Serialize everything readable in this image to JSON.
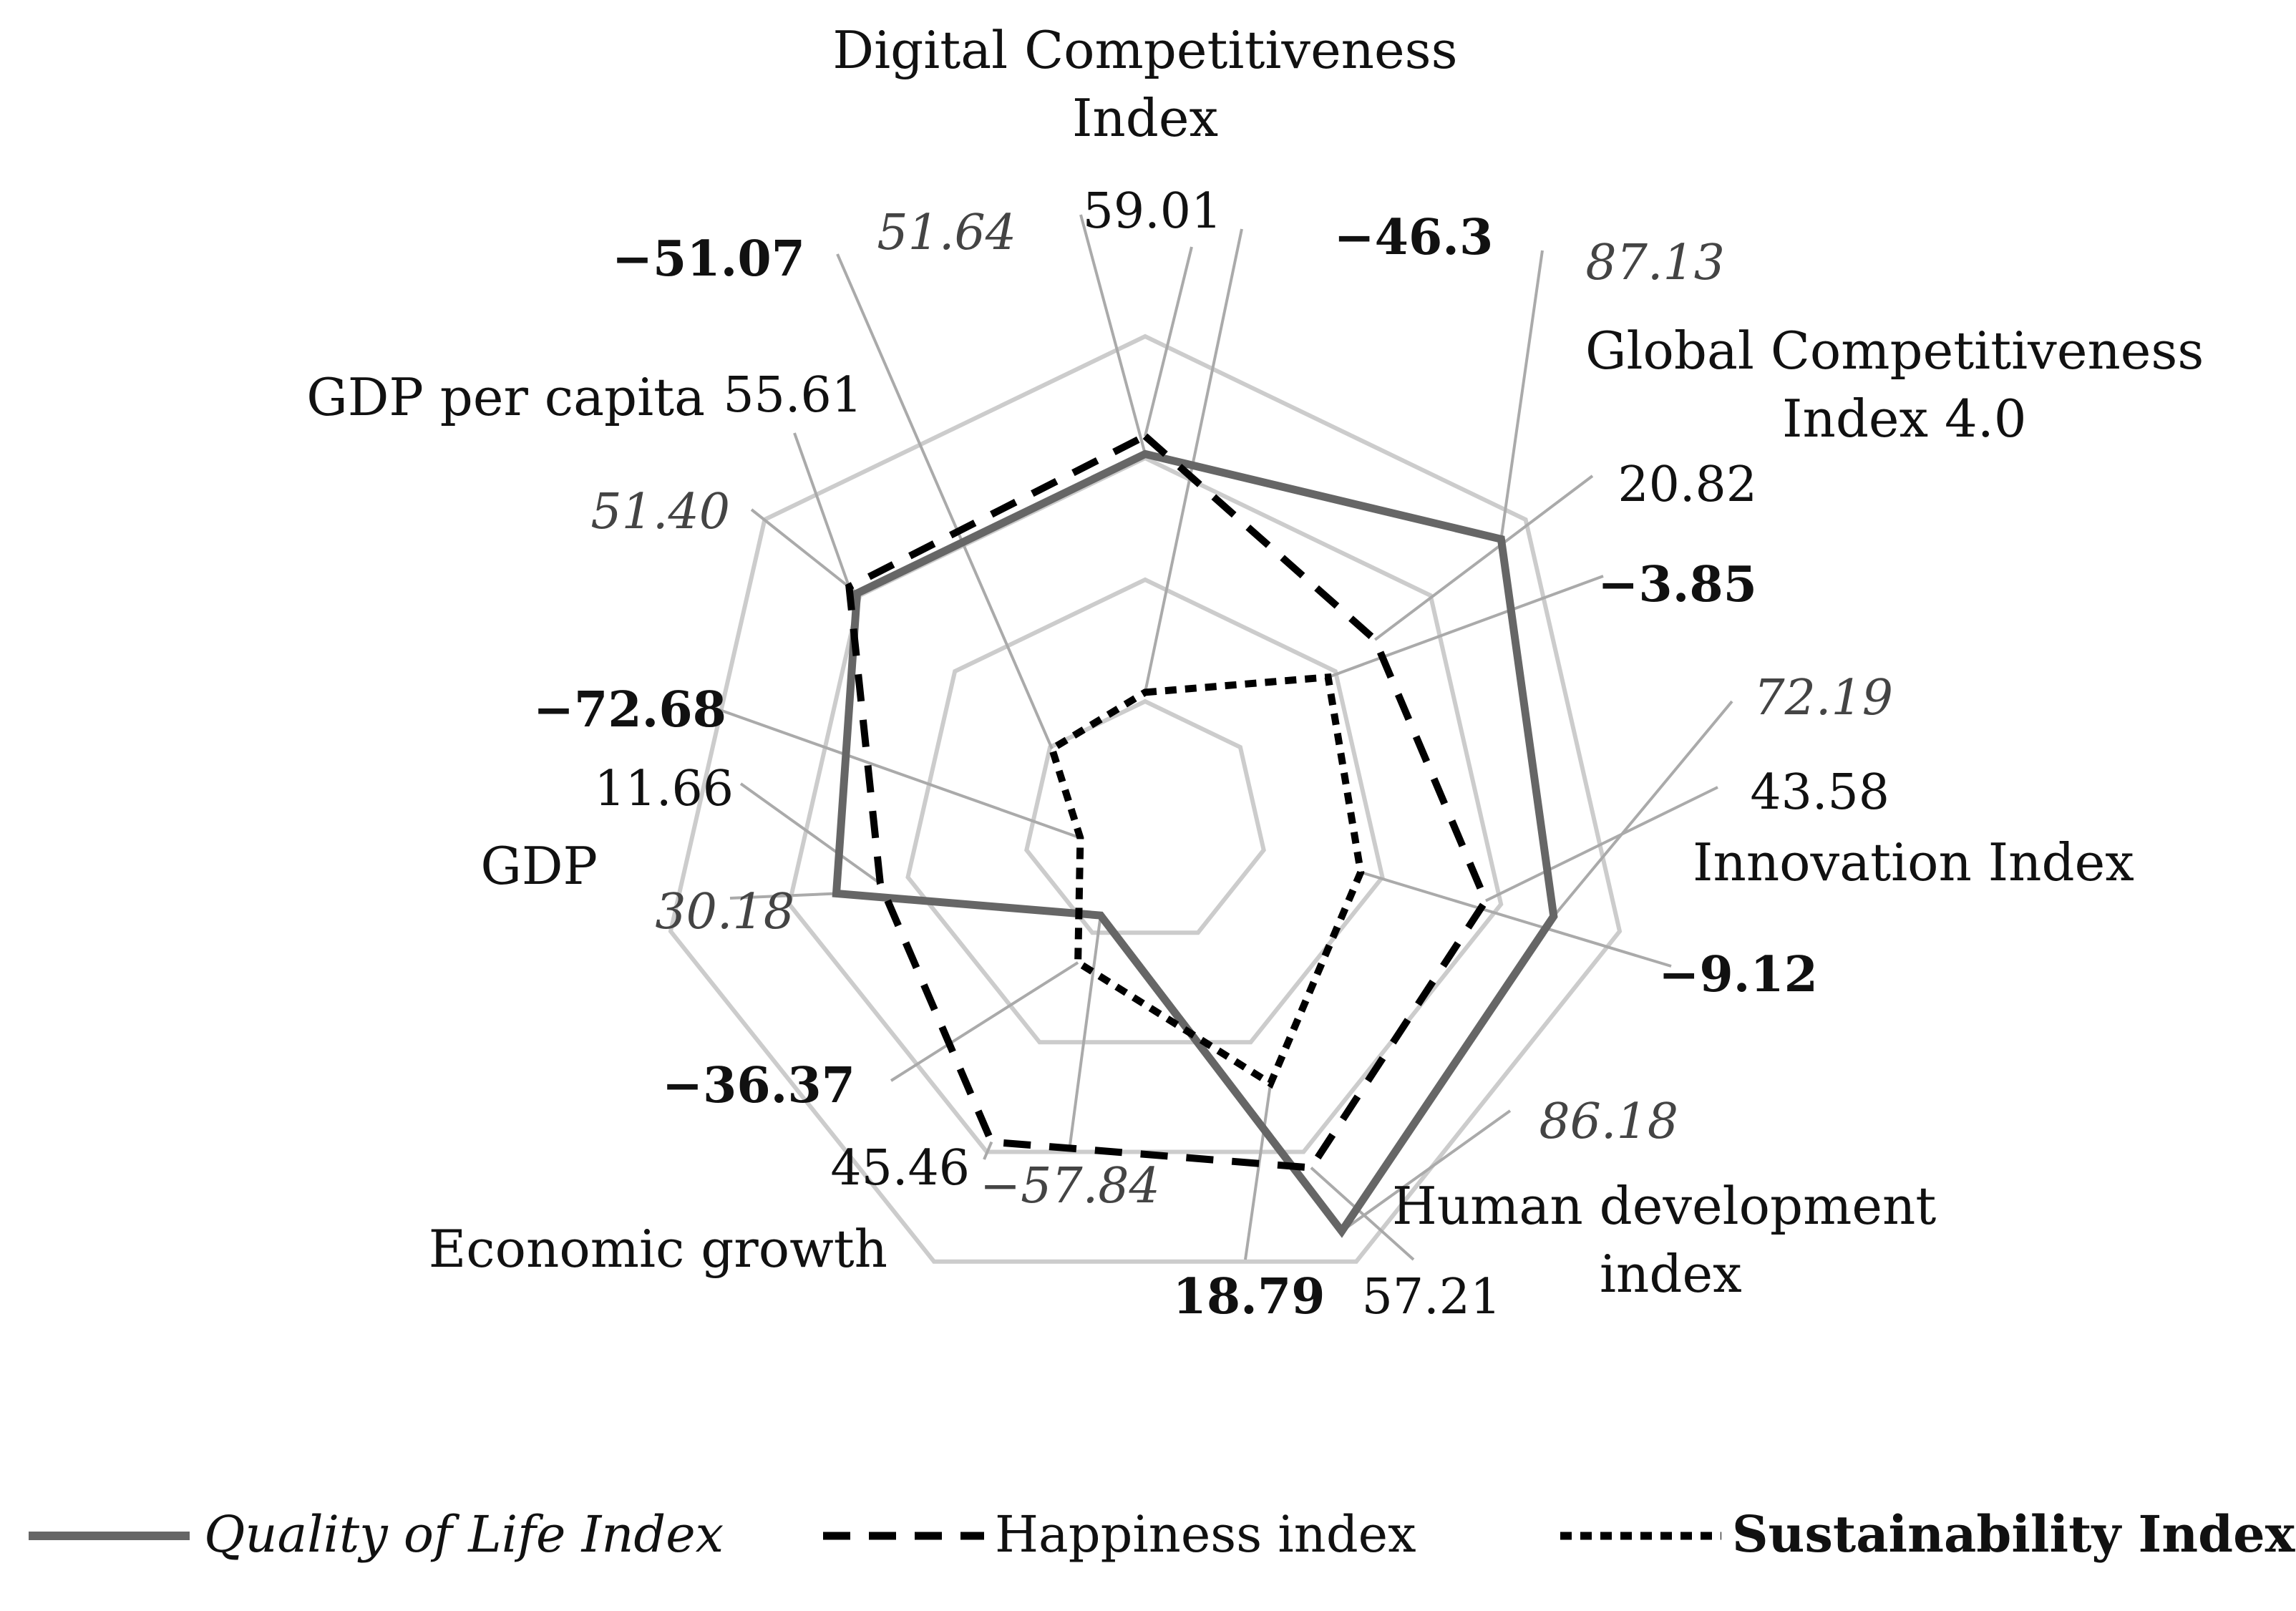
{
  "chart_data": {
    "type": "radar",
    "title": "",
    "axes": [
      "Digital Competitiveness Index",
      "Global Competitiveness Index 4.0",
      "Innovation Index",
      "Human development index",
      "Economic growth",
      "GDP",
      "GDP per capita"
    ],
    "axis_label_lines": [
      [
        "Digital Competitiveness",
        "Index"
      ],
      [
        "Global Competitiveness",
        "Index 4.0"
      ],
      [
        "Innovation Index"
      ],
      [
        "Human development",
        "index"
      ],
      [
        "Economic growth"
      ],
      [
        "GDP"
      ],
      [
        "GDP per capita"
      ]
    ],
    "range": [
      -100,
      100
    ],
    "gridlines": [
      -100,
      -50,
      0,
      50,
      100
    ],
    "series": [
      {
        "name": "Quality of Life Index",
        "style": "solid",
        "label_style": "italic",
        "color": "#666666",
        "values": [
          51.64,
          87.13,
          72.19,
          86.18,
          -57.84,
          30.18,
          51.4
        ],
        "labels": [
          "51.64",
          "87.13",
          "72.19",
          "86.18",
          "−57.84",
          "30.18",
          "51.40"
        ]
      },
      {
        "name": "Happiness index",
        "style": "dashed",
        "label_style": "regular",
        "color": "#000000",
        "values": [
          59.01,
          20.82,
          43.58,
          57.21,
          45.46,
          11.66,
          55.61
        ],
        "labels": [
          "59.01",
          "20.82",
          "43.58",
          "57.21",
          "45.46",
          "11.66",
          "55.61"
        ]
      },
      {
        "name": "Sustainability Index",
        "style": "dotted",
        "label_style": "bold",
        "color": "#000000",
        "values": [
          -46.3,
          -3.85,
          -9.12,
          18.79,
          -36.37,
          -72.68,
          -51.07
        ],
        "labels": [
          "−46.3",
          "−3.85",
          "−9.12",
          "18.79",
          "−36.37",
          "−72.68",
          "−51.07"
        ]
      }
    ],
    "legend_position": "bottom",
    "gridline_color": "#cccccc",
    "leader_color": "#aaaaaa"
  }
}
